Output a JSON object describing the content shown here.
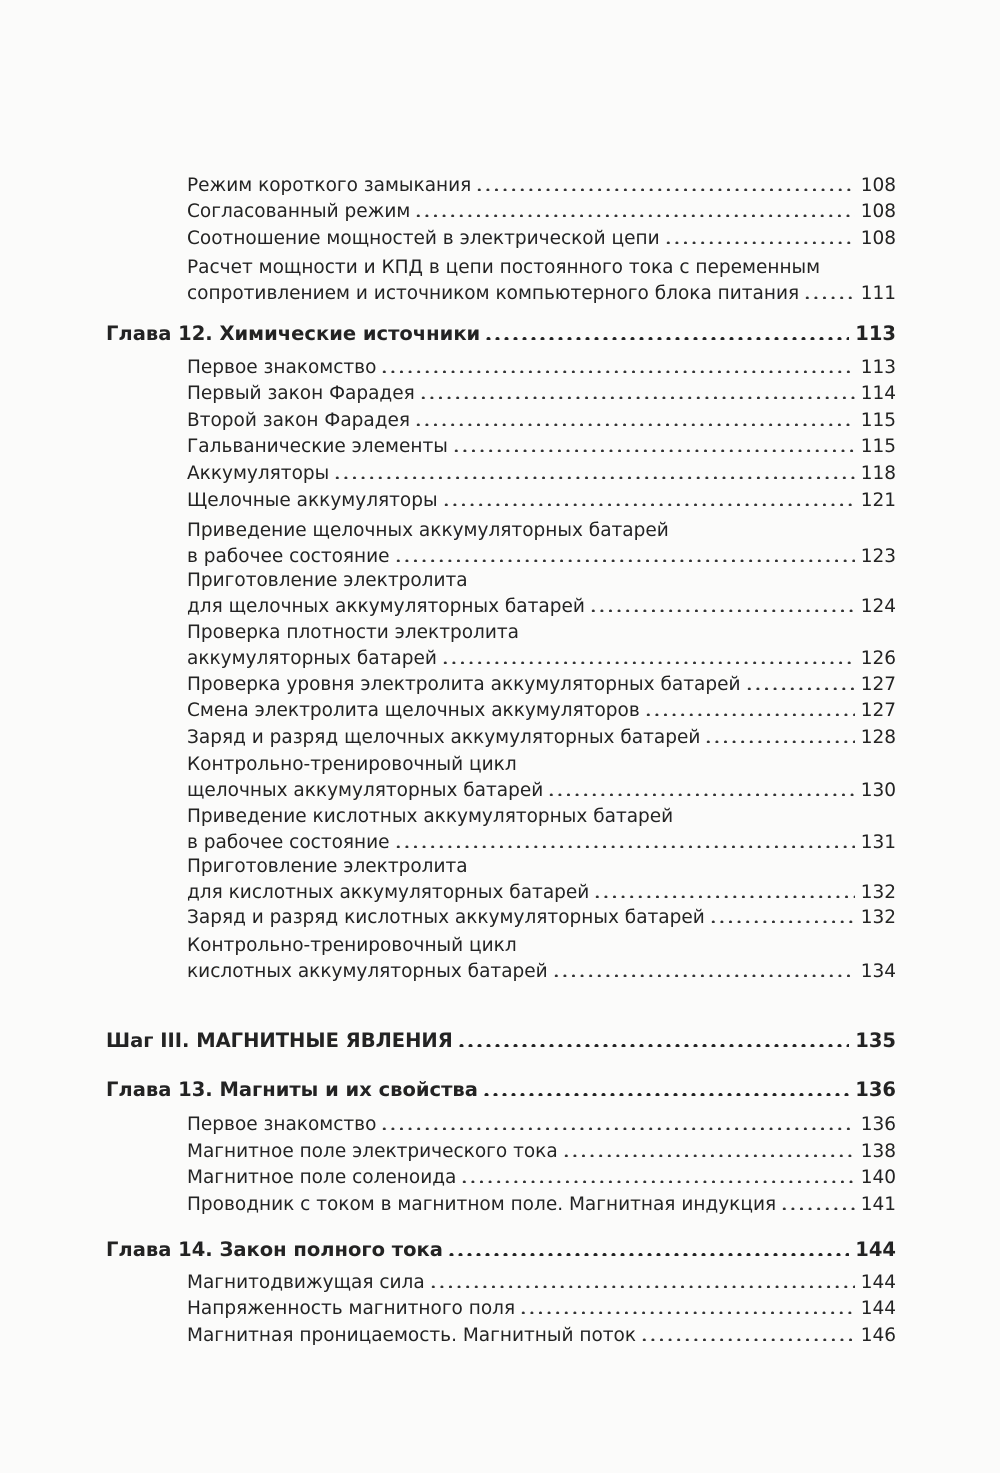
{
  "entries": [
    {
      "type": "item",
      "lines": [],
      "title": "Режим короткого замыкания",
      "page": "108"
    },
    {
      "type": "item",
      "lines": [],
      "title": "Согласованный режим",
      "page": "108"
    },
    {
      "type": "item",
      "lines": [],
      "title": "Соотношение мощностей в электрической цепи",
      "page": "108"
    },
    {
      "type": "item",
      "lines": [
        "Расчет мощности и КПД в цепи постоянного тока с переменным"
      ],
      "title": "сопротивлением и источником компьютерного блока питания",
      "page": "111"
    },
    {
      "type": "chapter",
      "lines": [],
      "title": "Глава 12. Химические источники",
      "page": "113"
    },
    {
      "type": "item",
      "lines": [],
      "title": "Первое знакомство",
      "page": "113"
    },
    {
      "type": "item",
      "lines": [],
      "title": "Первый закон Фарадея",
      "page": "114"
    },
    {
      "type": "item",
      "lines": [],
      "title": "Второй закон Фарадея",
      "page": "115"
    },
    {
      "type": "item",
      "lines": [],
      "title": "Гальванические элементы",
      "page": "115"
    },
    {
      "type": "item",
      "lines": [],
      "title": "Аккумуляторы",
      "page": "118"
    },
    {
      "type": "item",
      "lines": [],
      "title": "Щелочные аккумуляторы",
      "page": "121"
    },
    {
      "type": "item",
      "lines": [
        "Приведение щелочных аккумуляторных батарей"
      ],
      "title": "в рабочее состояние",
      "page": "123"
    },
    {
      "type": "item",
      "lines": [
        "Приготовление электролита"
      ],
      "title": "для щелочных аккумуляторных батарей",
      "page": "124"
    },
    {
      "type": "item",
      "lines": [
        "Проверка плотности электролита"
      ],
      "title": "аккумуляторных батарей",
      "page": "126"
    },
    {
      "type": "item",
      "lines": [],
      "title": "Проверка уровня электролита аккумуляторных батарей",
      "page": "127"
    },
    {
      "type": "item",
      "lines": [],
      "title": "Смена электролита щелочных аккумуляторов",
      "page": "127"
    },
    {
      "type": "item",
      "lines": [],
      "title": "Заряд и разряд щелочных аккумуляторных батарей",
      "page": "128"
    },
    {
      "type": "item",
      "lines": [
        "Контрольно-тренировочный цикл"
      ],
      "title": "щелочных аккумуляторных батарей",
      "page": "130"
    },
    {
      "type": "item",
      "lines": [
        "Приведение кислотных аккумуляторных батарей"
      ],
      "title": "в рабочее состояние",
      "page": "131"
    },
    {
      "type": "item",
      "lines": [
        "Приготовление электролита"
      ],
      "title": "для кислотных аккумуляторных батарей",
      "page": "132"
    },
    {
      "type": "item",
      "lines": [],
      "title": "Заряд и разряд кислотных аккумуляторных батарей",
      "page": "132"
    },
    {
      "type": "item",
      "lines": [
        "Контрольно-тренировочный цикл"
      ],
      "title": "кислотных аккумуляторных батарей",
      "page": "134"
    },
    {
      "type": "section",
      "lines": [],
      "title": "Шаг III. МАГНИТНЫЕ ЯВЛЕНИЯ",
      "page": "135"
    },
    {
      "type": "chapter",
      "lines": [],
      "title": "Глава 13. Магниты и их свойства",
      "page": "136"
    },
    {
      "type": "item",
      "lines": [],
      "title": "Первое знакомство",
      "page": "136"
    },
    {
      "type": "item",
      "lines": [],
      "title": "Магнитное поле электрического тока",
      "page": "138"
    },
    {
      "type": "item",
      "lines": [],
      "title": "Магнитное поле соленоида",
      "page": "140"
    },
    {
      "type": "item",
      "lines": [],
      "title": "Проводник с током в магнитном поле. Магнитная индукция",
      "page": "141"
    },
    {
      "type": "chapter",
      "lines": [],
      "title": "Глава 14. Закон полного тока",
      "page": "144"
    },
    {
      "type": "item",
      "lines": [],
      "title": "Магнитодвижущая сила",
      "page": "144"
    },
    {
      "type": "item",
      "lines": [],
      "title": "Напряженность магнитного поля",
      "page": "144"
    },
    {
      "type": "item",
      "lines": [],
      "title": "Магнитная проницаемость. Магнитный поток",
      "page": "146"
    }
  ]
}
